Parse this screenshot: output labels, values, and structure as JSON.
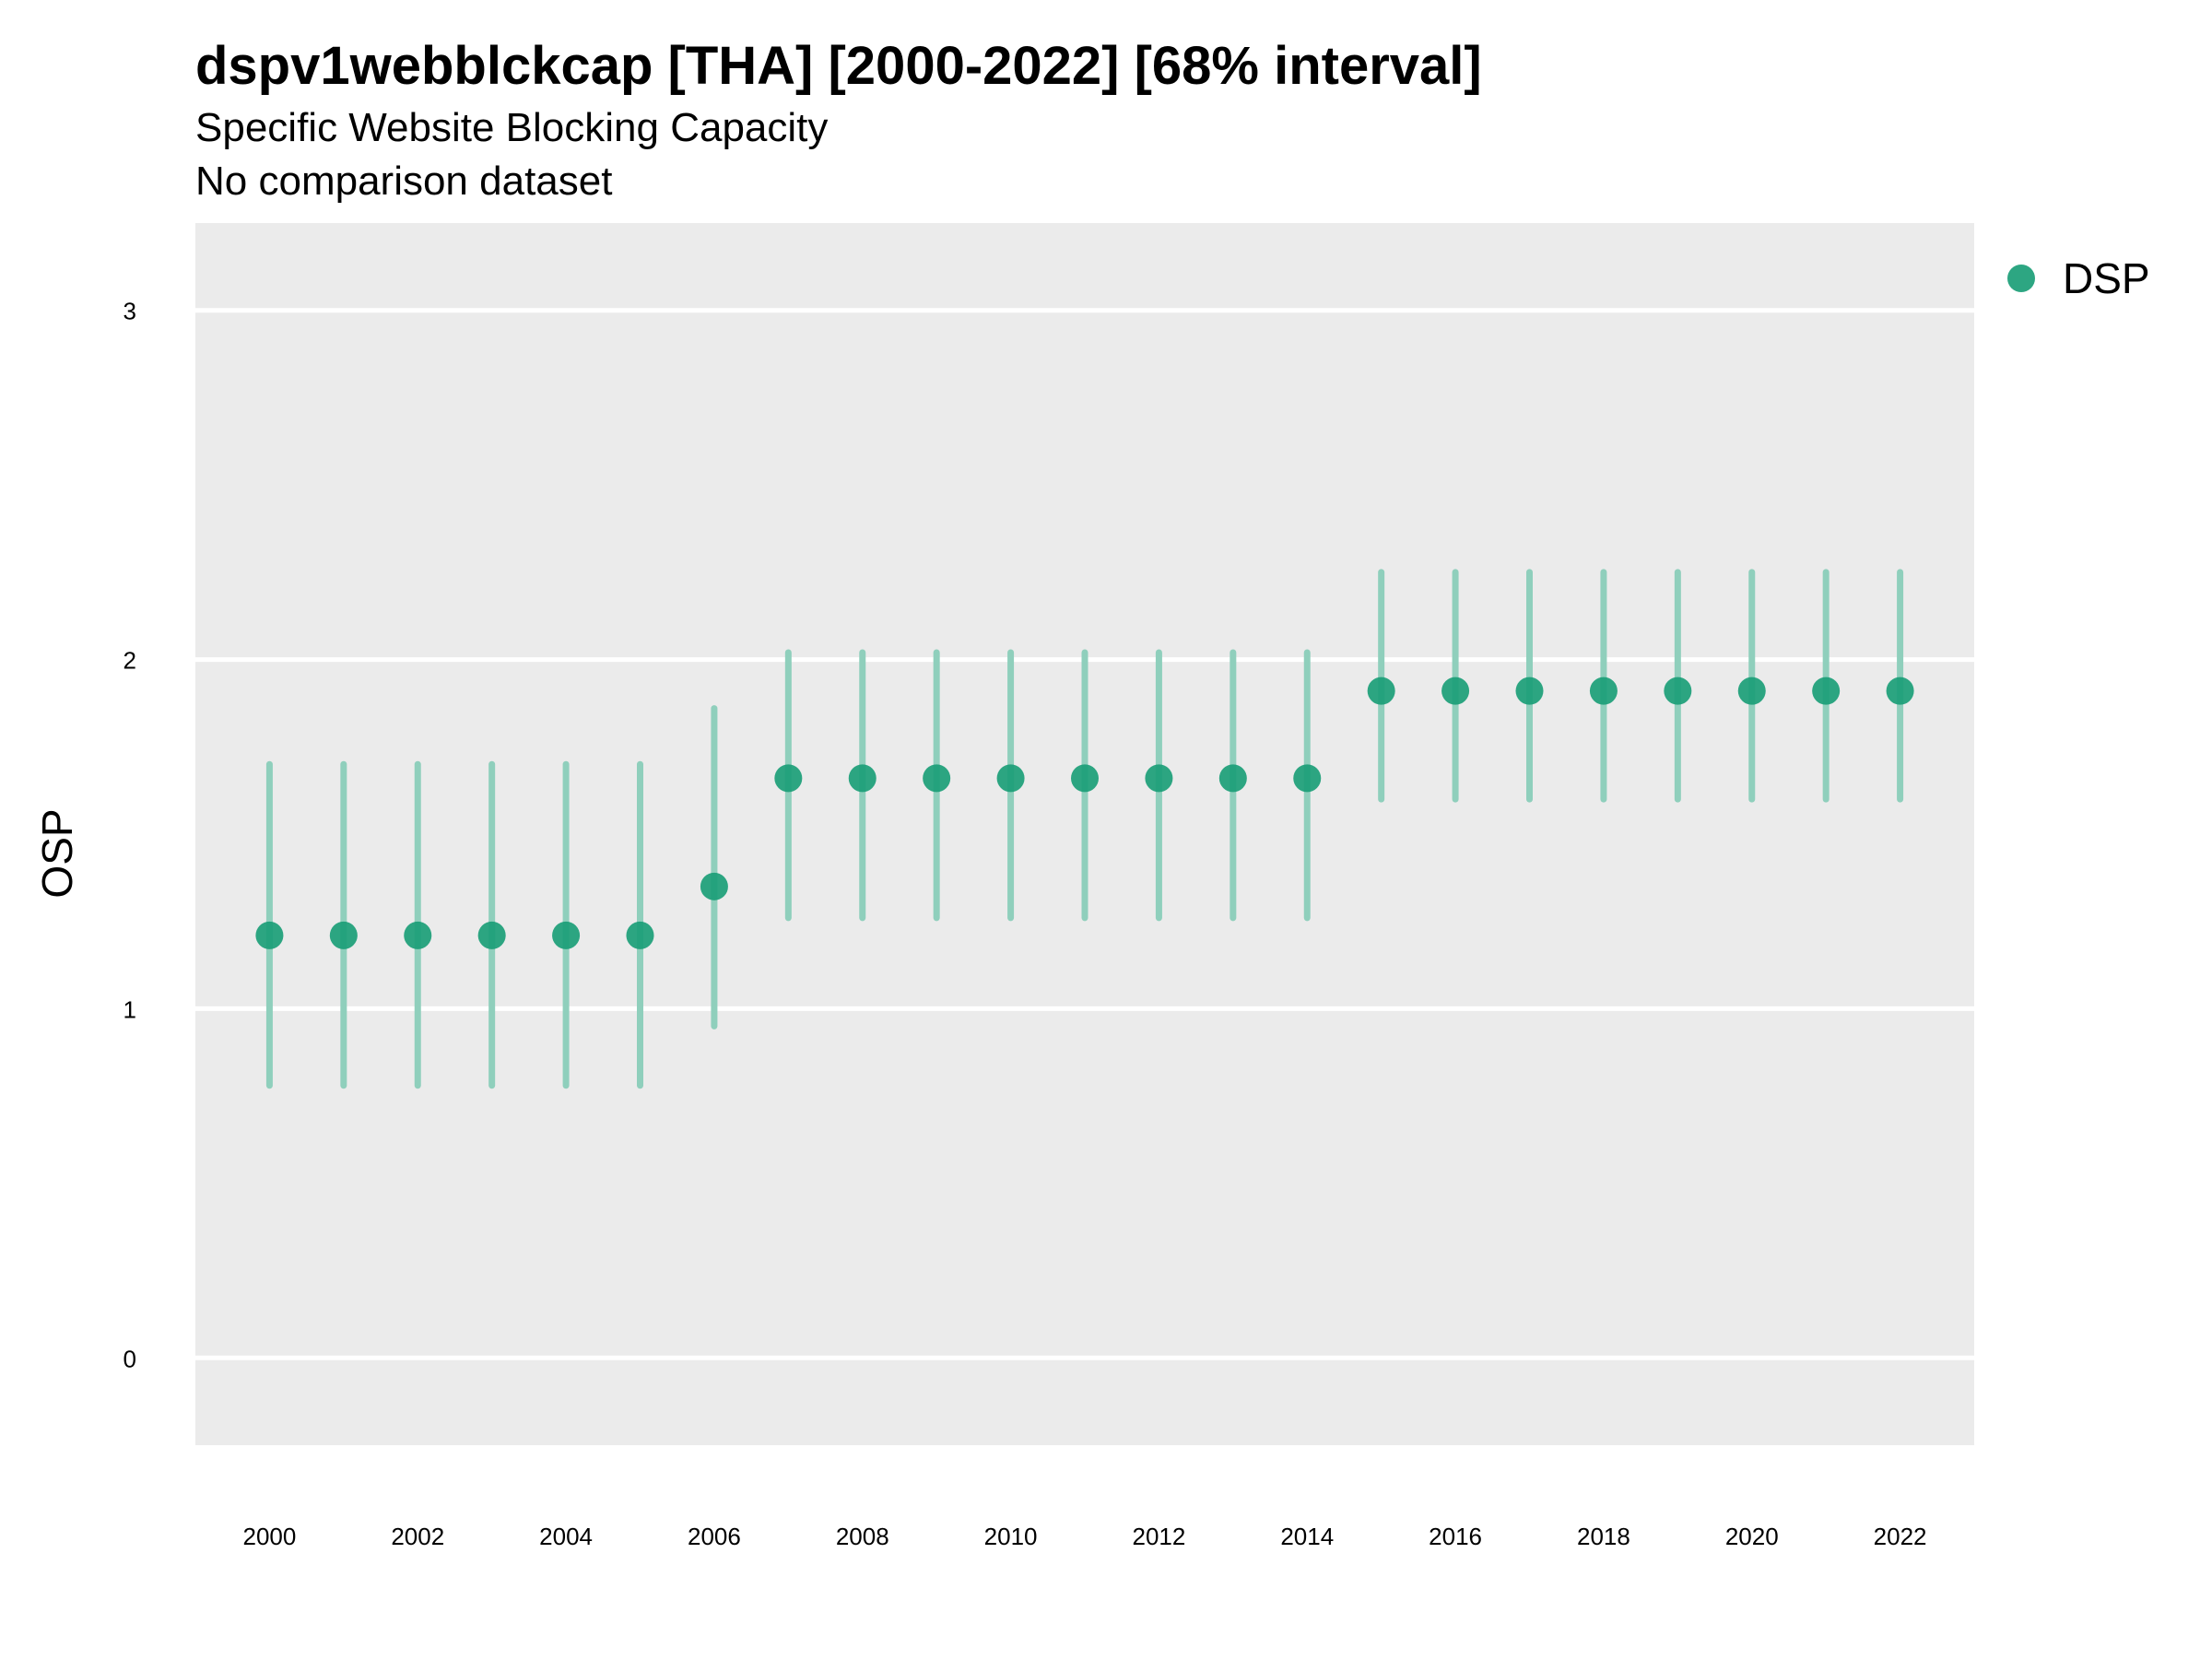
{
  "chart_data": {
    "type": "scatter",
    "title": "dspv1webblckcap [THA] [2000-2022] [68% interval]",
    "subtitle": "Specific Website Blocking Capacity",
    "caption": "No comparison dataset",
    "ylabel": "OSP",
    "xlabel": "",
    "ylim": [
      -0.25,
      3.25
    ],
    "xlim": [
      1999,
      2023
    ],
    "yticks": [
      "0",
      "1",
      "2",
      "3"
    ],
    "xticks": [
      "2000",
      "2002",
      "2004",
      "2006",
      "2008",
      "2010",
      "2012",
      "2014",
      "2016",
      "2018",
      "2020",
      "2022"
    ],
    "grid": true,
    "legend_position": "top-right",
    "colors": {
      "point": "#1B9E77",
      "interval": "#8FCFBC",
      "panel": "#EBEBEB",
      "grid": "#FFFFFF"
    },
    "series": [
      {
        "name": "DSP",
        "points": [
          {
            "x": 2000,
            "y": 1.21,
            "lo": 0.78,
            "hi": 1.7
          },
          {
            "x": 2001,
            "y": 1.21,
            "lo": 0.78,
            "hi": 1.7
          },
          {
            "x": 2002,
            "y": 1.21,
            "lo": 0.78,
            "hi": 1.7
          },
          {
            "x": 2003,
            "y": 1.21,
            "lo": 0.78,
            "hi": 1.7
          },
          {
            "x": 2004,
            "y": 1.21,
            "lo": 0.78,
            "hi": 1.7
          },
          {
            "x": 2005,
            "y": 1.21,
            "lo": 0.78,
            "hi": 1.7
          },
          {
            "x": 2006,
            "y": 1.35,
            "lo": 0.95,
            "hi": 1.86
          },
          {
            "x": 2007,
            "y": 1.66,
            "lo": 1.26,
            "hi": 2.02
          },
          {
            "x": 2008,
            "y": 1.66,
            "lo": 1.26,
            "hi": 2.02
          },
          {
            "x": 2009,
            "y": 1.66,
            "lo": 1.26,
            "hi": 2.02
          },
          {
            "x": 2010,
            "y": 1.66,
            "lo": 1.26,
            "hi": 2.02
          },
          {
            "x": 2011,
            "y": 1.66,
            "lo": 1.26,
            "hi": 2.02
          },
          {
            "x": 2012,
            "y": 1.66,
            "lo": 1.26,
            "hi": 2.02
          },
          {
            "x": 2013,
            "y": 1.66,
            "lo": 1.26,
            "hi": 2.02
          },
          {
            "x": 2014,
            "y": 1.66,
            "lo": 1.26,
            "hi": 2.02
          },
          {
            "x": 2015,
            "y": 1.91,
            "lo": 1.6,
            "hi": 2.25
          },
          {
            "x": 2016,
            "y": 1.91,
            "lo": 1.6,
            "hi": 2.25
          },
          {
            "x": 2017,
            "y": 1.91,
            "lo": 1.6,
            "hi": 2.25
          },
          {
            "x": 2018,
            "y": 1.91,
            "lo": 1.6,
            "hi": 2.25
          },
          {
            "x": 2019,
            "y": 1.91,
            "lo": 1.6,
            "hi": 2.25
          },
          {
            "x": 2020,
            "y": 1.91,
            "lo": 1.6,
            "hi": 2.25
          },
          {
            "x": 2021,
            "y": 1.91,
            "lo": 1.6,
            "hi": 2.25
          },
          {
            "x": 2022,
            "y": 1.91,
            "lo": 1.6,
            "hi": 2.25
          }
        ]
      }
    ]
  }
}
